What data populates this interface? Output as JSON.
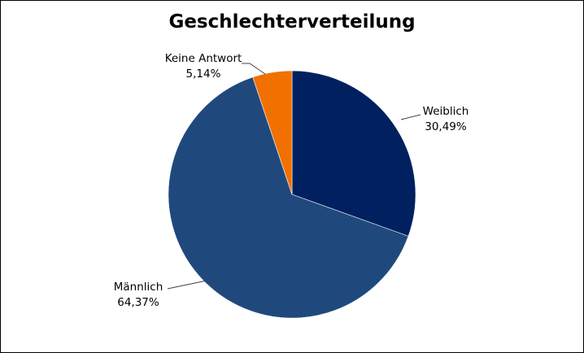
{
  "chart_data": {
    "type": "pie",
    "title": "Geschlechterverteilung",
    "slices": [
      {
        "label": "Weiblich",
        "value": 30.49,
        "value_text": "30,49%",
        "color": "#002060"
      },
      {
        "label": "Männlich",
        "value": 64.37,
        "value_text": "64,37%",
        "color": "#1F497D"
      },
      {
        "label": "Keine Antwort",
        "value": 5.14,
        "value_text": "5,14%",
        "color": "#F07000"
      }
    ],
    "start_angle_deg": 0,
    "direction": "clockwise",
    "legend": "none",
    "labels": "outside-with-leader-lines"
  }
}
